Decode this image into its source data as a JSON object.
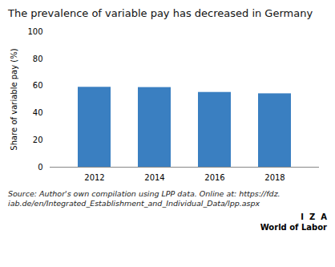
{
  "chart_data": {
    "type": "bar",
    "title": "The prevalence of variable pay has decreased in Germany",
    "categories": [
      "2012",
      "2014",
      "2016",
      "2018"
    ],
    "values": [
      59.0,
      58.8,
      55.2,
      54.2
    ],
    "color": "#3a7fc1",
    "ylabel": "Share of variable pay (%)",
    "ylim": [
      0,
      100
    ],
    "yticks": [
      0,
      20,
      40,
      60,
      80,
      100
    ],
    "grid": false,
    "annotations": [
      "Source: Author's own compilation using LPP data. Online at: https://fdz.\niab.de/en/Integrated_Establishment_and_Individual_Data/lpp.aspx",
      "I  Z  A",
      "World of Labor"
    ]
  }
}
